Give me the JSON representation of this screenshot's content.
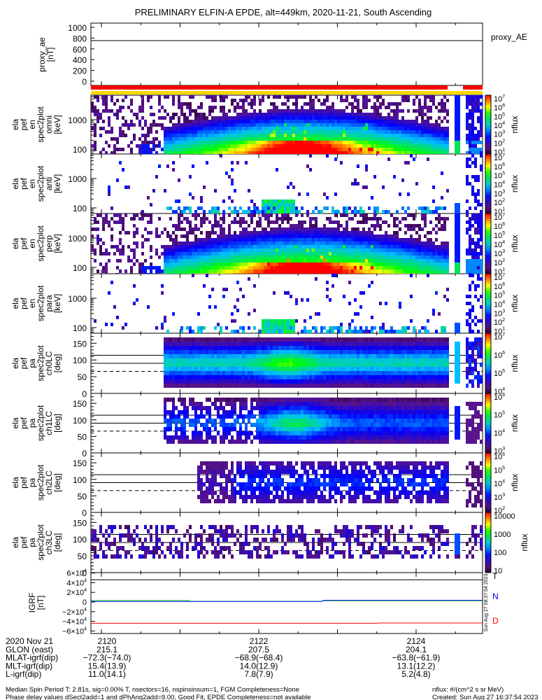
{
  "title": "PRELIMINARY ELFIN-A EPDE, alt=449km, 2020-11-21, South Ascending",
  "colors": {
    "red_bar": "#ff0000",
    "yellow_bar": "#ffd800",
    "igrf_T": "#000000",
    "igrf_N_blue": "#0000ff",
    "igrf_N_green": "#00cc00",
    "igrf_D": "#ff0000"
  },
  "chart_data": [
    {
      "type": "line",
      "name": "proxy_ae",
      "ylabel_lines": [
        "proxy_ae",
        "[nT]"
      ],
      "legend": "proxy_AE",
      "ylim": [
        0,
        1000
      ],
      "yticks": [
        "0",
        "200",
        "400",
        "600",
        "800",
        "1000"
      ],
      "x": [
        2119.9,
        2124.9
      ],
      "values": [
        750,
        750
      ]
    },
    {
      "type": "heatmap",
      "name": "en-omni",
      "ylabel_lines": [
        "ela",
        "pef",
        "en",
        "spec2plot",
        "omni",
        "[keV]"
      ],
      "yscale": "log",
      "yticks": [
        "1000",
        "100"
      ],
      "zlabel": "nflux",
      "zticks": [
        {
          "b": "10",
          "e": "7"
        },
        {
          "b": "10",
          "e": "6"
        },
        {
          "b": "10",
          "e": "5"
        },
        {
          "b": "10",
          "e": "4"
        },
        {
          "b": "10",
          "e": "3"
        },
        {
          "b": "10",
          "e": "2"
        },
        {
          "b": "10",
          "e": "1"
        }
      ]
    },
    {
      "type": "heatmap",
      "name": "en-anti",
      "ylabel_lines": [
        "ela",
        "pef",
        "en",
        "spec2plot",
        "anti",
        "[keV]"
      ],
      "yscale": "log",
      "yticks": [
        "1000",
        "100"
      ],
      "zlabel": "nflux",
      "zticks": [
        {
          "b": "10",
          "e": "7"
        },
        {
          "b": "10",
          "e": "6"
        },
        {
          "b": "10",
          "e": "5"
        },
        {
          "b": "10",
          "e": "4"
        },
        {
          "b": "10",
          "e": "3"
        },
        {
          "b": "10",
          "e": "2"
        },
        {
          "b": "10",
          "e": "1"
        }
      ]
    },
    {
      "type": "heatmap",
      "name": "en-perp",
      "ylabel_lines": [
        "ela",
        "pef",
        "en",
        "spec2plot",
        "perp",
        "[keV]"
      ],
      "yscale": "log",
      "yticks": [
        "1000",
        "100"
      ],
      "zlabel": "nflux",
      "zticks": [
        {
          "b": "10",
          "e": "7"
        },
        {
          "b": "10",
          "e": "6"
        },
        {
          "b": "10",
          "e": "5"
        },
        {
          "b": "10",
          "e": "4"
        },
        {
          "b": "10",
          "e": "3"
        },
        {
          "b": "10",
          "e": "2"
        },
        {
          "b": "10",
          "e": "1"
        }
      ]
    },
    {
      "type": "heatmap",
      "name": "en-para",
      "ylabel_lines": [
        "ela",
        "pef",
        "en",
        "spec2plot",
        "para",
        "[keV]"
      ],
      "yscale": "log",
      "yticks": [
        "1000",
        "100"
      ],
      "zlabel": "nflux",
      "zticks": [
        {
          "b": "10",
          "e": "7"
        },
        {
          "b": "10",
          "e": "6"
        },
        {
          "b": "10",
          "e": "5"
        },
        {
          "b": "10",
          "e": "4"
        },
        {
          "b": "10",
          "e": "3"
        },
        {
          "b": "10",
          "e": "2"
        },
        {
          "b": "10",
          "e": "1"
        }
      ]
    },
    {
      "type": "heatmap",
      "name": "pa-ch0LC",
      "ylabel_lines": [
        "ela",
        "pef",
        "pa",
        "spec2plot",
        "ch0LC",
        "[deg]"
      ],
      "ylim": [
        0,
        180
      ],
      "yticks": [
        "150",
        "100",
        "50",
        "0"
      ],
      "zlabel": "nflux",
      "zticks": [
        {
          "b": "10",
          "e": "7"
        },
        {
          "b": "10",
          "e": "6"
        },
        {
          "b": "10",
          "e": "5"
        },
        {
          "b": "10",
          "e": "4"
        }
      ]
    },
    {
      "type": "heatmap",
      "name": "pa-ch1LC",
      "ylabel_lines": [
        "ela",
        "pef",
        "pa",
        "spec2plot",
        "ch1LC",
        "[deg]"
      ],
      "ylim": [
        0,
        180
      ],
      "yticks": [
        "150",
        "100",
        "50",
        "0"
      ],
      "zlabel": "nflux",
      "zticks": [
        {
          "b": "10",
          "e": "6"
        },
        {
          "b": "10",
          "e": "5"
        },
        {
          "b": "10",
          "e": "4"
        },
        {
          "b": "10",
          "e": "3"
        }
      ]
    },
    {
      "type": "heatmap",
      "name": "pa-ch2LC",
      "ylabel_lines": [
        "ela",
        "pef",
        "pa",
        "spec2plot",
        "ch2LC",
        "[deg]"
      ],
      "ylim": [
        0,
        180
      ],
      "yticks": [
        "150",
        "100",
        "50",
        "0"
      ],
      "zlabel": "nflux",
      "zticks": [
        {
          "b": "10",
          "e": "6"
        },
        {
          "b": "10",
          "e": "5"
        },
        {
          "b": "10",
          "e": "4"
        },
        {
          "b": "10",
          "e": "3"
        },
        {
          "b": "10",
          "e": "2"
        }
      ]
    },
    {
      "type": "heatmap",
      "name": "pa-ch3LC",
      "ylabel_lines": [
        "ela",
        "pef",
        "pa",
        "spec2plot",
        "ch3LC",
        "[deg]"
      ],
      "ylim": [
        0,
        180
      ],
      "yticks": [
        "150",
        "100",
        "50",
        "0"
      ],
      "zlabel": "nflux",
      "zticks": [
        {
          "b": "10000",
          "e": ""
        },
        {
          "b": "1000",
          "e": ""
        },
        {
          "b": "100",
          "e": ""
        },
        {
          "b": "10",
          "e": ""
        }
      ]
    },
    {
      "type": "line",
      "name": "igrf",
      "ylabel_lines": [
        "IGRF",
        "[nT]"
      ],
      "ylim": [
        -60000,
        60000
      ],
      "yticks": [
        {
          "b": "6×10",
          "e": "4"
        },
        {
          "b": "4×10",
          "e": "4"
        },
        {
          "b": "2×10",
          "e": "4"
        },
        {
          "b": "0",
          "e": ""
        },
        {
          "b": "−2×10",
          "e": "4"
        },
        {
          "b": "−4×10",
          "e": "4"
        },
        {
          "b": "−6×10",
          "e": "4"
        }
      ],
      "series": [
        {
          "name": "T",
          "values": [
            46000,
            46000
          ]
        },
        {
          "name": "N",
          "values": [
            2000,
            2000
          ]
        },
        {
          "name": "D",
          "values": [
            -44000,
            -44000
          ]
        }
      ],
      "created_stamp": "Sun Aug 27 08:37:54 2023"
    }
  ],
  "x_axis": {
    "rows": [
      {
        "label": "2020 Nov 21",
        "values": [
          "2120",
          "2122",
          "2124"
        ]
      },
      {
        "label": "GLON (east)",
        "values": [
          "215.1",
          "207.5",
          "204.1"
        ]
      },
      {
        "label": "MLAT-igrf(dip)",
        "values": [
          "−72.3(−74.0)",
          "−68.9(−68.4)",
          "−63.8(−61.9)"
        ]
      },
      {
        "label": "MLT-igrf(dip)",
        "values": [
          "15.4(13.9)",
          "14.0(12.9)",
          "13.1(12.2)"
        ]
      },
      {
        "label": "L-igrf(dip)",
        "values": [
          "11.0(14.1)",
          "7.8(7.9)",
          "5.2(4.8)"
        ]
      }
    ]
  },
  "footer": {
    "line1": "Median Spin Period T: 2.81s, sig=0.00% T, nsectors=16, nspinsinsum=1, FGM Completeness=None",
    "line2": "Phase delay values dSect2add=1 and dPhAng2add=9.00, Good Fit, EPDE Completeness=not available",
    "units": "nflux: #/(cm^2 s sr MeV)",
    "created": "Created: Sun Aug 27 16:37:54 2023"
  }
}
